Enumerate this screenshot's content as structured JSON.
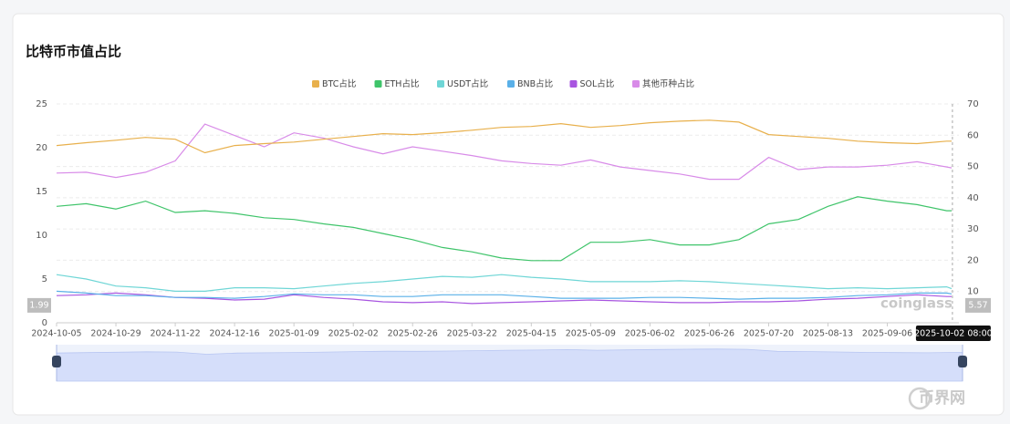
{
  "chart_data": {
    "type": "line",
    "title": "比特币市值占比",
    "x": [
      "2024-10-05",
      "2024-10-17",
      "2024-10-29",
      "2024-11-10",
      "2024-11-22",
      "2024-12-04",
      "2024-12-16",
      "2024-12-28",
      "2025-01-09",
      "2025-01-21",
      "2025-02-02",
      "2025-02-14",
      "2025-02-26",
      "2025-03-10",
      "2025-03-22",
      "2025-04-03",
      "2025-04-15",
      "2025-04-27",
      "2025-05-09",
      "2025-05-21",
      "2025-06-02",
      "2025-06-14",
      "2025-06-26",
      "2025-07-08",
      "2025-07-20",
      "2025-08-01",
      "2025-08-13",
      "2025-08-25",
      "2025-09-06",
      "2025-09-18",
      "2025-09-30",
      "2025-10-02"
    ],
    "xlim": [
      "2024-10-05",
      "2025-10-02"
    ],
    "xticks": [
      "2024-10-05",
      "2024-10-29",
      "2024-11-22",
      "2024-12-16",
      "2025-01-09",
      "2025-02-02",
      "2025-02-26",
      "2025-03-22",
      "2025-04-15",
      "2025-05-09",
      "2025-06-02",
      "2025-06-26",
      "2025-07-20",
      "2025-08-13",
      "2025-09-06"
    ],
    "ylim": [
      0,
      25
    ],
    "yticks": [
      0,
      5,
      10,
      15,
      20,
      25
    ],
    "y2lim": [
      0,
      70
    ],
    "y2ticks": [
      10,
      20,
      30,
      40,
      50,
      60,
      70
    ],
    "grid": true,
    "legend": "top",
    "series": [
      {
        "name": "BTC占比",
        "color": "#e8b04c",
        "axis": "y2",
        "values": [
          56.7,
          57.6,
          58.4,
          59.3,
          58.7,
          54.4,
          56.7,
          57.3,
          57.8,
          58.7,
          59.6,
          60.5,
          60.2,
          60.8,
          61.6,
          62.5,
          62.8,
          63.7,
          62.5,
          63.1,
          64.0,
          64.5,
          64.8,
          64.2,
          60.2,
          59.6,
          59.0,
          58.1,
          57.6,
          57.3,
          58.1,
          58.1
        ]
      },
      {
        "name": "ETH占比",
        "color": "#3fc46a",
        "values": [
          13.3,
          13.6,
          13.0,
          13.9,
          12.6,
          12.8,
          12.5,
          12.0,
          11.8,
          11.3,
          10.9,
          10.2,
          9.5,
          8.6,
          8.1,
          7.4,
          7.1,
          7.1,
          9.2,
          9.2,
          9.5,
          8.9,
          8.9,
          9.5,
          11.3,
          11.8,
          13.3,
          14.4,
          13.9,
          13.5,
          12.8,
          12.8
        ]
      },
      {
        "name": "USDT占比",
        "color": "#6fd6d6",
        "values": [
          5.5,
          5.0,
          4.2,
          4.0,
          3.6,
          3.6,
          4.0,
          4.0,
          3.9,
          4.2,
          4.5,
          4.7,
          5.0,
          5.3,
          5.2,
          5.5,
          5.2,
          5.0,
          4.7,
          4.7,
          4.7,
          4.8,
          4.7,
          4.5,
          4.3,
          4.1,
          3.9,
          4.0,
          3.9,
          4.0,
          4.1,
          3.9
        ]
      },
      {
        "name": "BNB占比",
        "color": "#5ab0e8",
        "values": [
          3.6,
          3.4,
          3.1,
          3.1,
          2.9,
          2.9,
          2.8,
          3.0,
          3.3,
          3.2,
          3.2,
          3.0,
          3.0,
          3.2,
          3.2,
          3.2,
          3.0,
          2.8,
          2.8,
          2.8,
          2.9,
          2.9,
          2.8,
          2.7,
          2.8,
          2.8,
          2.9,
          3.1,
          3.2,
          3.4,
          3.4,
          3.3
        ]
      },
      {
        "name": "SOL占比",
        "color": "#a855e0",
        "values": [
          3.1,
          3.2,
          3.4,
          3.2,
          2.9,
          2.8,
          2.6,
          2.7,
          3.2,
          2.9,
          2.7,
          2.4,
          2.3,
          2.4,
          2.2,
          2.3,
          2.4,
          2.5,
          2.6,
          2.5,
          2.4,
          2.3,
          2.3,
          2.4,
          2.4,
          2.5,
          2.7,
          2.8,
          3.0,
          3.2,
          3.0,
          3.0
        ]
      },
      {
        "name": "其他币种占比",
        "color": "#d88be8",
        "values": [
          17.1,
          17.2,
          16.6,
          17.2,
          18.5,
          22.7,
          21.4,
          20.1,
          21.7,
          21.1,
          20.1,
          19.3,
          20.1,
          19.6,
          19.1,
          18.5,
          18.2,
          18.0,
          18.6,
          17.8,
          17.4,
          17.0,
          16.4,
          16.4,
          18.9,
          17.5,
          17.8,
          17.8,
          18.0,
          18.4,
          17.8,
          17.7
        ]
      }
    ],
    "crosshair": {
      "x": "2025-10-02 08:00",
      "y": 1.99,
      "y2": 5.57
    },
    "watermark": "coinglass",
    "site_logo": "币界网"
  }
}
